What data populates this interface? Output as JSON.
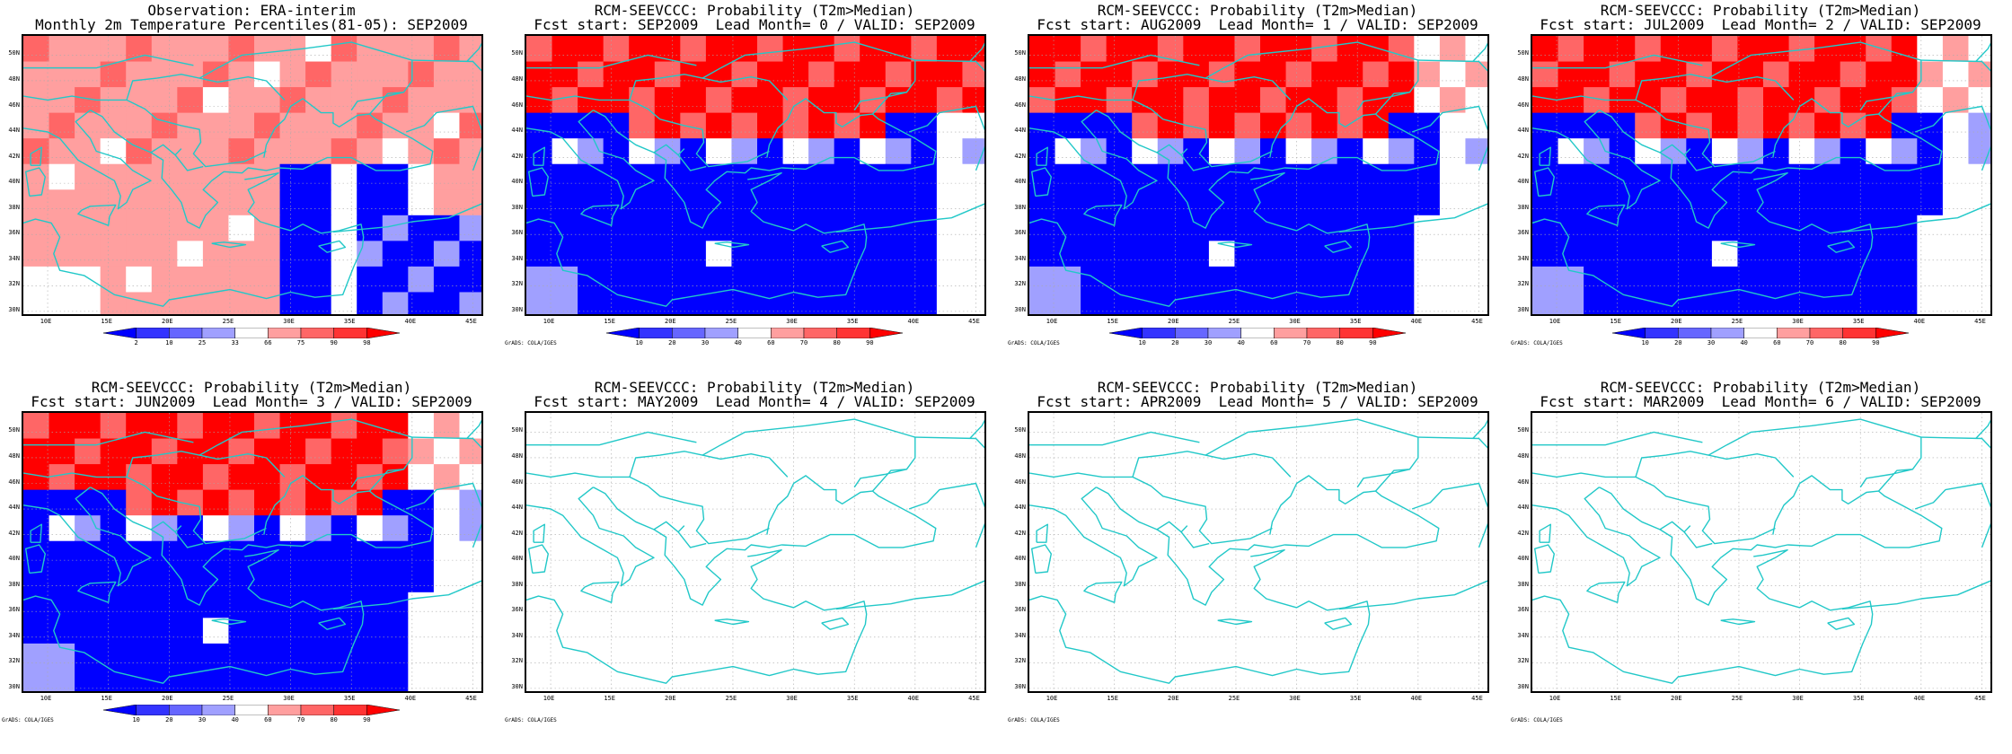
{
  "panels": [
    {
      "id": "obs",
      "title_line1": "Observation: ERA-interim",
      "title_line2": "Monthly 2m Temperature Percentiles(81-05): SEP2009",
      "kind": "percentile",
      "credit": ""
    },
    {
      "id": "lead0",
      "title_line1": "RCM-SEEVCCC: Probability (T2m>Median)",
      "title_line2": "Fcst start: SEP2009  Lead Month= 0 / VALID: SEP2009",
      "kind": "prob",
      "credit": "GrADS: COLA/IGES"
    },
    {
      "id": "lead1",
      "title_line1": "RCM-SEEVCCC: Probability (T2m>Median)",
      "title_line2": "Fcst start: AUG2009  Lead Month= 1 / VALID: SEP2009",
      "kind": "prob",
      "credit": "GrADS: COLA/IGES"
    },
    {
      "id": "lead2",
      "title_line1": "RCM-SEEVCCC: Probability (T2m>Median)",
      "title_line2": "Fcst start: JUL2009  Lead Month= 2 / VALID: SEP2009",
      "kind": "prob",
      "credit": "GrADS: COLA/IGES"
    },
    {
      "id": "lead3",
      "title_line1": "RCM-SEEVCCC: Probability (T2m>Median)",
      "title_line2": "Fcst start: JUN2009  Lead Month= 3 / VALID: SEP2009",
      "kind": "prob",
      "credit": "GrADS: COLA/IGES"
    },
    {
      "id": "lead4",
      "title_line1": "RCM-SEEVCCC: Probability (T2m>Median)",
      "title_line2": "Fcst start: MAY2009  Lead Month= 4 / VALID: SEP2009",
      "kind": "empty",
      "credit": "GrADS: COLA/IGES"
    },
    {
      "id": "lead5",
      "title_line1": "RCM-SEEVCCC: Probability (T2m>Median)",
      "title_line2": "Fcst start: APR2009  Lead Month= 5 / VALID: SEP2009",
      "kind": "empty",
      "credit": "GrADS: COLA/IGES"
    },
    {
      "id": "lead6",
      "title_line1": "RCM-SEEVCCC: Probability (T2m>Median)",
      "title_line2": "Fcst start: MAR2009  Lead Month= 6 / VALID: SEP2009",
      "kind": "empty",
      "credit": "GrADS: COLA/IGES"
    }
  ],
  "axes": {
    "lat_labels": [
      "50N",
      "48N",
      "46N",
      "44N",
      "42N",
      "40N",
      "38N",
      "36N",
      "34N",
      "32N",
      "30N"
    ],
    "lon_labels": [
      "10E",
      "15E",
      "20E",
      "25E",
      "30E",
      "35E",
      "40E",
      "45E"
    ]
  },
  "colorbars": {
    "percentile": {
      "labels": [
        "2",
        "10",
        "25",
        "33",
        "66",
        "75",
        "90",
        "98"
      ],
      "colors": [
        "#0000ff",
        "#3333ff",
        "#6666ff",
        "#a0a0ff",
        "#ffffff",
        "#ff9f9f",
        "#ff6666",
        "#ff3333",
        "#ff0000"
      ]
    },
    "prob": {
      "labels": [
        "10",
        "20",
        "30",
        "40",
        "60",
        "70",
        "80",
        "90"
      ],
      "colors": [
        "#0000ff",
        "#3333ff",
        "#6666ff",
        "#a0a0ff",
        "#ffffff",
        "#ff9f9f",
        "#ff6666",
        "#ff3333",
        "#ff0000"
      ]
    }
  },
  "colors": {
    "coastline": "#22c8c8",
    "grid": "#aaaaaa",
    "blue_strong": "#0000ff",
    "blue_light": "#a0a0ff",
    "red_strong": "#ff0000",
    "red_mid": "#ff6666",
    "red_light": "#ff9f9f"
  }
}
